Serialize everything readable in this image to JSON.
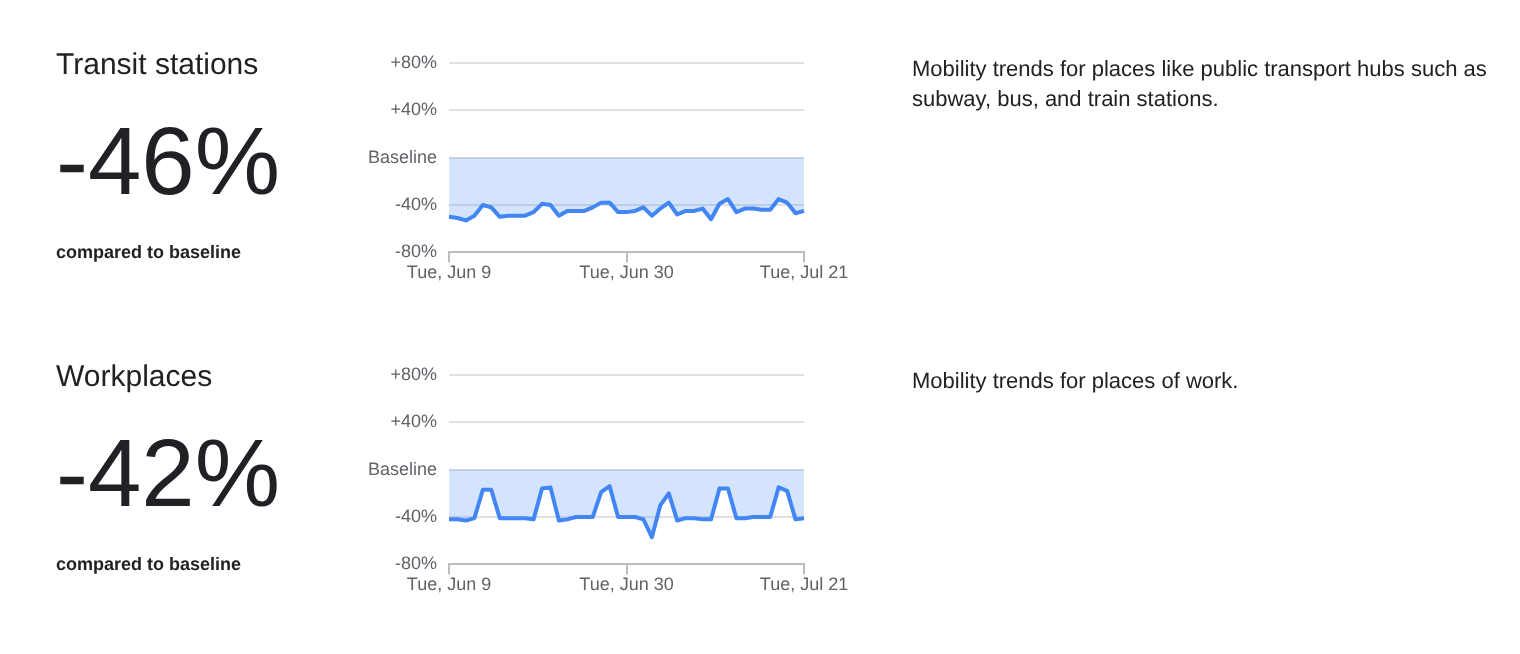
{
  "chart_data": [
    {
      "type": "area",
      "title": "Transit stations",
      "annotations": [
        "-46%",
        "compared to baseline",
        "Mobility trends for places like public transport hubs such as subway, bus, and train stations."
      ],
      "categories": [
        "Tue, Jun 9",
        null,
        null,
        null,
        null,
        null,
        null,
        null,
        null,
        null,
        null,
        null,
        null,
        null,
        null,
        null,
        null,
        null,
        null,
        null,
        null,
        "Tue, Jun 30",
        null,
        null,
        null,
        null,
        null,
        null,
        null,
        null,
        null,
        null,
        null,
        null,
        null,
        null,
        null,
        null,
        null,
        null,
        null,
        null,
        "Tue, Jul 21"
      ],
      "series": [
        {
          "color": "#4285f4",
          "values": [
            -50,
            -51,
            -53,
            -49,
            -40,
            -42,
            -50,
            -49,
            -49,
            -49,
            -46,
            -39,
            -40,
            -49,
            -45,
            -45,
            -45,
            -42,
            -38,
            -38,
            -46,
            -46,
            -45,
            -42,
            -49,
            -43,
            -38,
            -48,
            -45,
            -45,
            -43,
            -52,
            -39,
            -35,
            -46,
            -43,
            -43,
            -44,
            -44,
            -35,
            -38,
            -47,
            -45
          ]
        }
      ],
      "ylim": [
        -80,
        80
      ],
      "yticks": [
        {
          "value": -80,
          "label": "-80%"
        },
        {
          "value": -40,
          "label": "-40%"
        },
        {
          "value": 0,
          "label": "Baseline"
        },
        {
          "value": 40,
          "label": "+40%"
        },
        {
          "value": 80,
          "label": "+80%"
        }
      ],
      "grid": "y",
      "legend": false
    },
    {
      "type": "area",
      "title": "Workplaces",
      "annotations": [
        "-42%",
        "compared to baseline",
        "Mobility trends for places of work."
      ],
      "categories": [
        "Tue, Jun 9",
        null,
        null,
        null,
        null,
        null,
        null,
        null,
        null,
        null,
        null,
        null,
        null,
        null,
        null,
        null,
        null,
        null,
        null,
        null,
        null,
        "Tue, Jun 30",
        null,
        null,
        null,
        null,
        null,
        null,
        null,
        null,
        null,
        null,
        null,
        null,
        null,
        null,
        null,
        null,
        null,
        null,
        null,
        null,
        "Tue, Jul 21"
      ],
      "series": [
        {
          "color": "#4285f4",
          "values": [
            -42,
            -42,
            -43,
            -41,
            -17,
            -17,
            -41,
            -41,
            -41,
            -41,
            -42,
            -16,
            -15,
            -43,
            -42,
            -40,
            -40,
            -40,
            -19,
            -14,
            -40,
            -40,
            -40,
            -42,
            -57,
            -30,
            -20,
            -43,
            -41,
            -41,
            -42,
            -42,
            -16,
            -16,
            -41,
            -41,
            -40,
            -40,
            -40,
            -15,
            -18,
            -42,
            -41
          ]
        }
      ],
      "ylim": [
        -80,
        80
      ],
      "yticks": [
        {
          "value": -80,
          "label": "-80%"
        },
        {
          "value": -40,
          "label": "-40%"
        },
        {
          "value": 0,
          "label": "Baseline"
        },
        {
          "value": 40,
          "label": "+40%"
        },
        {
          "value": 80,
          "label": "+80%"
        }
      ],
      "grid": "y",
      "legend": false
    }
  ]
}
